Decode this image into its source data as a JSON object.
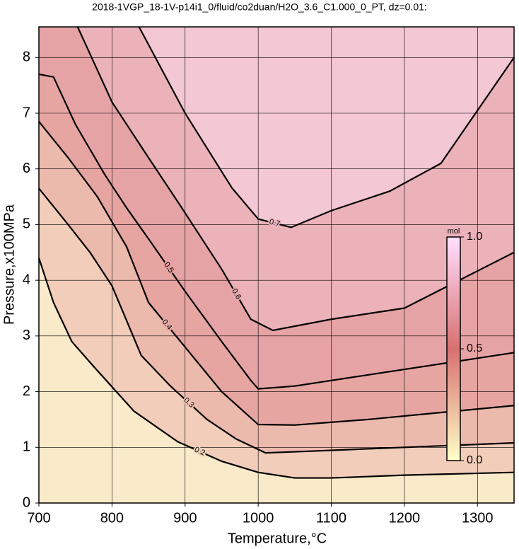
{
  "chart_data": {
    "type": "contour",
    "title": "2018-1VGP_18-1V-p14i1_0/fluid/co2duan/H2O_3.6_C1.000_0_PT, dz=0.01:",
    "x_label": "Temperature,°C",
    "y_label": "Pressure,x100MPa",
    "xlim": [
      700,
      1350
    ],
    "ylim": [
      0,
      8.55
    ],
    "xticks": [
      700,
      800,
      900,
      1000,
      1100,
      1200,
      1300
    ],
    "yticks": [
      0,
      1,
      2,
      3,
      4,
      5,
      6,
      7,
      8
    ],
    "grid": true,
    "series": [
      {
        "level": 0.2,
        "x": [
          700,
          720,
          745,
          775,
          830,
          890,
          950,
          1000,
          1050,
          1100,
          1200,
          1350
        ],
        "values": [
          4.4,
          3.6,
          2.9,
          2.45,
          1.65,
          1.1,
          0.75,
          0.55,
          0.45,
          0.45,
          0.5,
          0.55
        ]
      },
      {
        "level": 0.3,
        "x": [
          700,
          740,
          770,
          800,
          840,
          880,
          930,
          970,
          1010,
          1070,
          1200,
          1350
        ],
        "values": [
          5.65,
          5.0,
          4.5,
          3.9,
          2.65,
          2.1,
          1.5,
          1.15,
          0.9,
          0.93,
          1.0,
          1.08
        ]
      },
      {
        "level": 0.4,
        "x": [
          700,
          740,
          780,
          820,
          850,
          900,
          950,
          1000,
          1050,
          1150,
          1350
        ],
        "values": [
          6.85,
          6.2,
          5.5,
          4.6,
          3.6,
          2.8,
          2.0,
          1.41,
          1.4,
          1.5,
          1.75
        ]
      },
      {
        "level": 0.5,
        "x": [
          700,
          720,
          750,
          790,
          820,
          855,
          900,
          950,
          990,
          1000,
          1050,
          1150,
          1350
        ],
        "values": [
          7.7,
          7.65,
          6.8,
          5.9,
          5.3,
          4.65,
          3.8,
          2.9,
          2.2,
          2.05,
          2.1,
          2.3,
          2.7
        ]
      },
      {
        "level": 0.6,
        "x": [
          753,
          800,
          850,
          893,
          950,
          990,
          1020,
          1100,
          1200,
          1350
        ],
        "values": [
          8.55,
          7.2,
          6.2,
          5.35,
          4.2,
          3.3,
          3.1,
          3.3,
          3.5,
          4.5
        ]
      },
      {
        "level": 0.7,
        "x": [
          837,
          900,
          964,
          1000,
          1045,
          1100,
          1180,
          1250,
          1350
        ],
        "values": [
          8.55,
          7.0,
          5.66,
          5.1,
          4.95,
          5.25,
          5.6,
          6.1,
          8.0
        ]
      }
    ],
    "colorbar": {
      "label": "mol",
      "lim": [
        0,
        1
      ],
      "ticks": [
        {
          "value": 0,
          "label": "0.0"
        },
        {
          "value": 0.5,
          "label": "0.5"
        },
        {
          "value": 1,
          "label": "1.0"
        }
      ],
      "colors": [
        "#ffffc8",
        "#d87070",
        "#ffe0ff"
      ]
    }
  }
}
